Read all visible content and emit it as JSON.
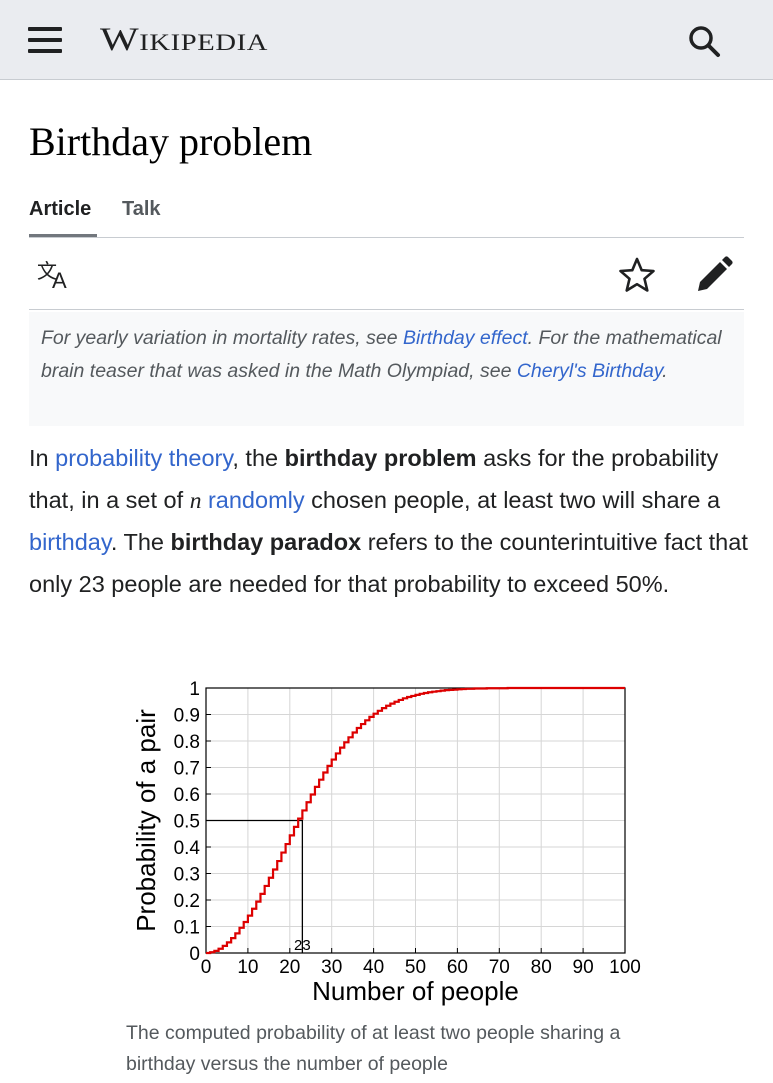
{
  "header": {
    "logo_text": "Wikipedia",
    "menu_icon": "hamburger-menu-icon",
    "search_icon": "search-icon"
  },
  "page": {
    "title": "Birthday problem"
  },
  "tabs": [
    {
      "label": "Article",
      "active": true
    },
    {
      "label": "Talk",
      "active": false
    }
  ],
  "actions": {
    "language_icon": "language-icon",
    "watch_icon": "star-icon",
    "edit_icon": "pencil-icon"
  },
  "hatnote": {
    "part1": "For yearly variation in mortality rates, see ",
    "link1": "Birthday effect",
    "part2": ". For the mathematical brain teaser that was asked in the Math Olympiad, see ",
    "link2": "Cheryl's Birthday",
    "part3": "."
  },
  "intro": {
    "t1": "In ",
    "l1": "probability theory",
    "t2": ", the ",
    "b1": "birthday problem",
    "t3": " asks for the probability that, in a set of ",
    "math": "n",
    "t4": " ",
    "l2": "randomly",
    "t5": " chosen people, at least two will share a ",
    "l3": "birthday",
    "t6": ". The ",
    "b2": "birthday paradox",
    "t7": " refers to the counterintuitive fact that only 23 people are needed for that probability to exceed 50%."
  },
  "figure": {
    "caption": "The computed probability of at least two people sharing a birthday versus the number of people"
  },
  "colors": {
    "header_bg": "#eaecf0",
    "link": "#3366cc",
    "curve": "#dd0000"
  },
  "chart_data": {
    "type": "line",
    "title": "",
    "xlabel": "Number of people",
    "ylabel": "Probability of a pair",
    "xlim": [
      0,
      100
    ],
    "ylim": [
      0,
      1
    ],
    "x_ticks": [
      "0",
      "10",
      "20",
      "30",
      "40",
      "50",
      "60",
      "70",
      "80",
      "90",
      "100"
    ],
    "y_ticks": [
      "0",
      "0.1",
      "0.2",
      "0.3",
      "0.4",
      "0.5",
      "0.6",
      "0.7",
      "0.8",
      "0.9",
      "1"
    ],
    "grid": true,
    "annotation": {
      "label": "23",
      "x": 23,
      "y": 0.5
    },
    "series": [
      {
        "x": [
          1,
          2,
          3,
          4,
          5,
          6,
          7,
          8,
          9,
          10,
          11,
          12,
          13,
          14,
          15,
          16,
          17,
          18,
          19,
          20,
          21,
          22,
          23,
          24,
          25,
          26,
          27,
          28,
          29,
          30,
          31,
          32,
          33,
          34,
          35,
          36,
          37,
          38,
          39,
          40,
          41,
          42,
          43,
          44,
          45,
          46,
          47,
          48,
          49,
          50,
          51,
          52,
          53,
          54,
          55,
          56,
          57,
          58,
          59,
          60,
          61,
          62,
          63,
          64,
          65,
          66,
          67,
          68,
          69,
          70,
          71,
          72,
          73,
          74,
          75,
          76,
          77,
          78,
          79,
          80,
          81,
          82,
          83,
          84,
          85,
          86,
          87,
          88,
          89,
          90,
          91,
          92,
          93,
          94,
          95,
          96,
          97,
          98,
          99,
          100
        ],
        "values": [
          0,
          0.003,
          0.008,
          0.016,
          0.027,
          0.04,
          0.056,
          0.074,
          0.095,
          0.117,
          0.141,
          0.167,
          0.194,
          0.223,
          0.253,
          0.284,
          0.315,
          0.347,
          0.379,
          0.411,
          0.444,
          0.476,
          0.507,
          0.538,
          0.569,
          0.598,
          0.627,
          0.654,
          0.681,
          0.706,
          0.73,
          0.753,
          0.775,
          0.795,
          0.814,
          0.832,
          0.849,
          0.864,
          0.878,
          0.891,
          0.903,
          0.914,
          0.924,
          0.933,
          0.941,
          0.948,
          0.955,
          0.961,
          0.966,
          0.97,
          0.974,
          0.978,
          0.981,
          0.984,
          0.986,
          0.988,
          0.99,
          0.992,
          0.993,
          0.994,
          0.995,
          0.996,
          0.997,
          0.997,
          0.998,
          0.998,
          0.998,
          0.999,
          0.999,
          0.999,
          0.999,
          0.999,
          1,
          1,
          1,
          1,
          1,
          1,
          1,
          1,
          1,
          1,
          1,
          1,
          1,
          1,
          1,
          1,
          1,
          1,
          1,
          1,
          1,
          1,
          1,
          1,
          1,
          1,
          1,
          1
        ]
      }
    ]
  }
}
